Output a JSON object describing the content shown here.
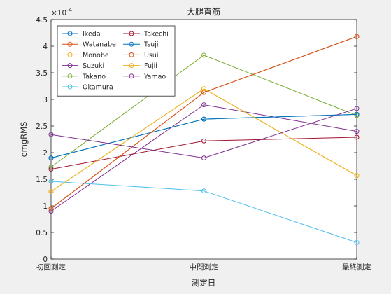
{
  "chart_data": {
    "type": "line",
    "title": "大腿直筋",
    "xlabel": "測定日",
    "ylabel": "emgRMS",
    "y_exponent_label": "×10",
    "y_exponent": "-4",
    "categories": [
      "初回測定",
      "中間測定",
      "最終測定"
    ],
    "ylim": [
      0,
      4.5
    ],
    "yticks": [
      "0",
      "0.5",
      "1",
      "1.5",
      "2",
      "2.5",
      "3",
      "3.5",
      "4",
      "4.5"
    ],
    "grid": false,
    "legend_position": "top-left",
    "legend_columns": 2,
    "series": [
      {
        "name": "Ikeda",
        "color": "#0072bd",
        "values": [
          1.9,
          2.63,
          2.72
        ]
      },
      {
        "name": "Watanabe",
        "color": "#d95319",
        "values": [
          0.95,
          3.13,
          4.18
        ]
      },
      {
        "name": "Monobe",
        "color": "#edb120",
        "values": [
          1.27,
          3.2,
          1.57
        ]
      },
      {
        "name": "Suzuki",
        "color": "#7e2f8e",
        "values": [
          0.9,
          2.9,
          2.4
        ]
      },
      {
        "name": "Takano",
        "color": "#77ac30",
        "values": [
          1.73,
          3.83,
          2.7
        ]
      },
      {
        "name": "Okamura",
        "color": "#4dbeee",
        "values": [
          1.46,
          1.28,
          0.31
        ]
      },
      {
        "name": "Takechi",
        "color": "#a2142f",
        "values": [
          1.69,
          2.22,
          2.29
        ]
      },
      {
        "name": "Tsuji",
        "color": "#0072bd",
        "values": [
          1.9,
          2.63,
          2.72
        ]
      },
      {
        "name": "Usui",
        "color": "#d95319",
        "values": [
          0.95,
          3.13,
          4.18
        ]
      },
      {
        "name": "Fujii",
        "color": "#edb120",
        "values": [
          1.27,
          3.2,
          1.57
        ]
      },
      {
        "name": "Yamao",
        "color": "#7e2f8e",
        "values": [
          2.34,
          1.9,
          2.83
        ]
      }
    ]
  }
}
